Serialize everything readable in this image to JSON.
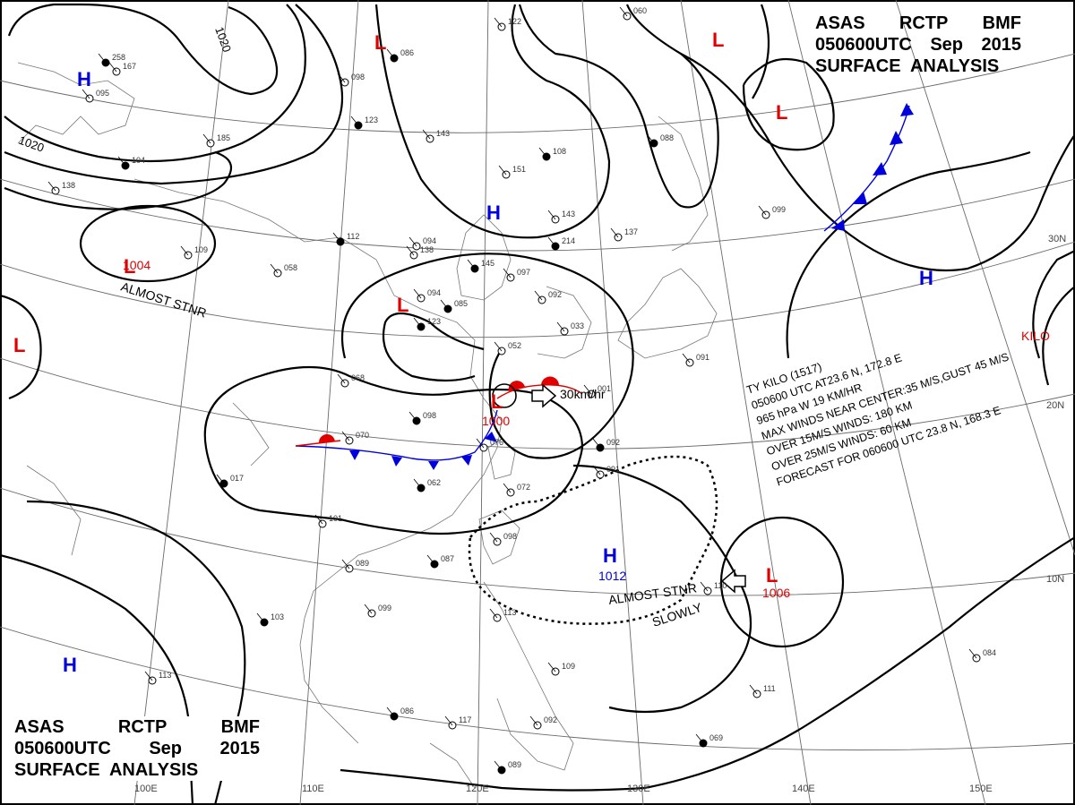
{
  "header_top": {
    "line1": [
      "ASAS",
      "RCTP",
      "BMF"
    ],
    "line2": [
      "050600UTC",
      "Sep",
      "2015"
    ],
    "line3": "SURFACE  ANALYSIS"
  },
  "header_bottom": {
    "line1": [
      "ASAS",
      "RCTP",
      "BMF"
    ],
    "line2": [
      "050600UTC",
      "Sep",
      "2015"
    ],
    "line3": "SURFACE  ANALYSIS"
  },
  "colors": {
    "low": "#e00000",
    "high": "#0000dd",
    "isobar": "#000000",
    "grid": "#666666",
    "front_warm": "#e00000",
    "front_cold": "#0000dd"
  },
  "longitude_labels": [
    "100E",
    "110E",
    "120E",
    "130E",
    "140E",
    "150E"
  ],
  "latitude_labels": [
    "30N",
    "20N",
    "10N"
  ],
  "isobar_labels": [
    "1020",
    "1020"
  ],
  "pressure_centers": [
    {
      "type": "L",
      "value": "1004",
      "note": "ALMOST STNR"
    },
    {
      "type": "L",
      "value": "1000",
      "movement": "30km/hr"
    },
    {
      "type": "L",
      "value": "1006",
      "movement": "SLOWLY"
    },
    {
      "type": "H",
      "value": "1012",
      "note": "ALMOST STNR"
    },
    {
      "type": "H"
    },
    {
      "type": "H"
    },
    {
      "type": "H"
    },
    {
      "type": "H"
    },
    {
      "type": "L"
    },
    {
      "type": "L"
    },
    {
      "type": "L"
    },
    {
      "type": "L"
    },
    {
      "type": "L"
    }
  ],
  "typhoon": {
    "label": "KILO",
    "lines": [
      "TY  KILO  (1517)",
      "050600 UTC  AT23.6 N, 172.8 E",
      "965 hPa  W  19 KM/HR",
      "MAX WINDS NEAR CENTER:35 M/S,GUST 45 M/S",
      "OVER 15M/S WINDS: 180 KM",
      "OVER 25M/S WINDS: 60 KM",
      "FORECAST FOR 060600 UTC 23.8 N, 168.3 E"
    ]
  },
  "station_numbers": [
    "258",
    "167",
    "185",
    "123",
    "143",
    "122",
    "086",
    "060",
    "098",
    "145",
    "094",
    "151",
    "108",
    "143",
    "099",
    "112",
    "138",
    "094",
    "085",
    "109",
    "058",
    "123",
    "052",
    "068",
    "098",
    "070",
    "076",
    "062",
    "072",
    "091",
    "092",
    "101",
    "089",
    "087",
    "098",
    "099",
    "103",
    "113",
    "109",
    "086",
    "092",
    "117",
    "089",
    "110",
    "111",
    "069",
    "084",
    "097",
    "088",
    "091",
    "095",
    "104",
    "138",
    "113",
    "214",
    "137",
    "092",
    "017",
    "033",
    "001"
  ]
}
